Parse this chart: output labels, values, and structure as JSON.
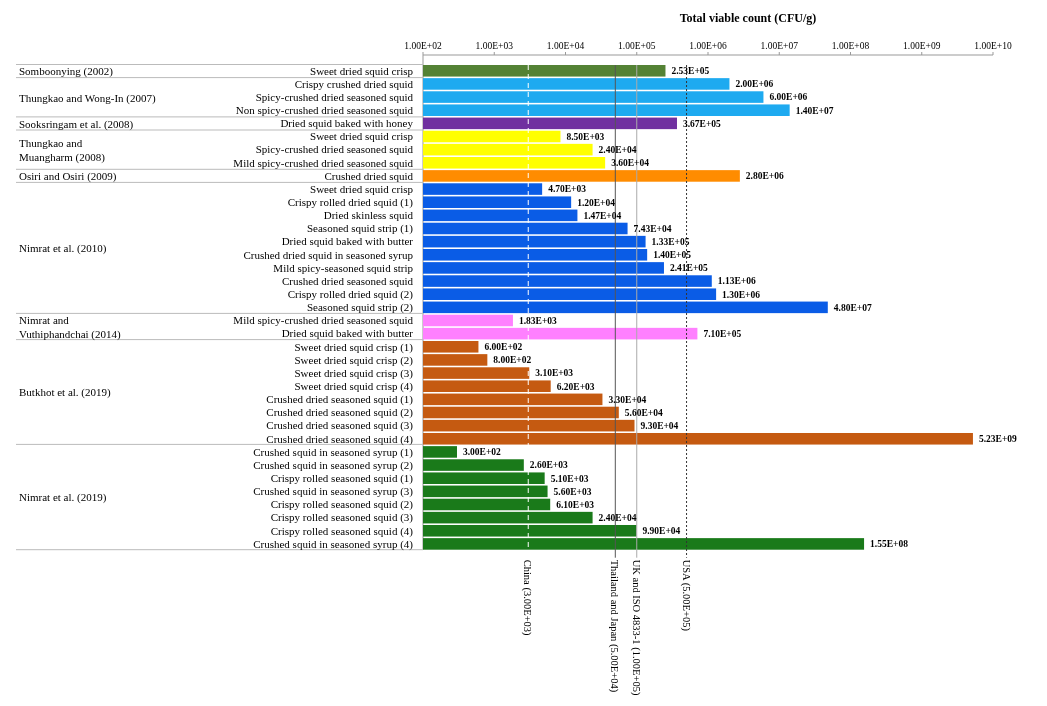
{
  "chart_data": {
    "type": "bar",
    "orientation": "horizontal",
    "log": "x",
    "xlabel": "Total viable count (CFU/g)",
    "categories": [
      "Sweet dried squid crisp",
      "Crispy crushed dried squid",
      "Spicy-crushed dried seasoned squid",
      "Non spicy-crushed dried seasoned squid",
      "Dried squid baked with honey",
      "Sweet dried squid crisp",
      "Spicy-crushed dried seasoned squid",
      "Mild spicy-crushed dried seasoned squid",
      "Crushed dried squid",
      "Sweet dried squid crisp",
      "Crispy rolled dried squid (1)",
      "Dried skinless squid",
      "Seasoned squid strip (1)",
      "Dried squid baked with butter",
      "Crushed dried squid in seasoned syrup",
      "Mild spicy-seasoned squid strip",
      "Crushed dried seasoned squid",
      "Crispy rolled dried squid (2)",
      "Seasoned squid strip (2)",
      "Mild spicy-crushed dried seasoned squid",
      "Dried squid baked with butter",
      "Sweet dried squid crisp (1)",
      "Sweet dried squid crisp (2)",
      "Sweet dried squid crisp (3)",
      "Sweet dried squid crisp (4)",
      "Crushed dried seasoned squid (1)",
      "Crushed dried seasoned squid (2)",
      "Crushed dried seasoned squid (3)",
      "Crushed dried seasoned squid (4)",
      "Crushed squid in seasoned syrup (1)",
      "Crushed squid in seasoned syrup (2)",
      "Crispy rolled seasoned squid (1)",
      "Crushed squid in seasoned syrup (3)",
      "Crispy rolled seasoned squid (2)",
      "Crispy rolled seasoned squid (3)",
      "Crispy rolled seasoned squid (4)",
      "Crushed squid in seasoned syrup (4)"
    ],
    "values": [
      253000,
      2000000,
      6000000,
      14000000,
      367000,
      8500,
      24000,
      36000,
      2800000,
      4700,
      12000,
      14700,
      74300,
      133000,
      140000,
      241000,
      1130000,
      1300000,
      48000000,
      1830,
      710000,
      600,
      800,
      3100,
      6200,
      33000,
      56000,
      93000,
      5230000000,
      300,
      2600,
      5100,
      5600,
      6100,
      24000,
      99000,
      155000000
    ],
    "value_labels": [
      "2.53E+05",
      "2.00E+06",
      "6.00E+06",
      "1.40E+07",
      "3.67E+05",
      "8.50E+03",
      "2.40E+04",
      "3.60E+04",
      "2.80E+06",
      "4.70E+03",
      "1.20E+04",
      "1.47E+04",
      "7.43E+04",
      "1.33E+05",
      "1.40E+05",
      "2.41E+05",
      "1.13E+06",
      "1.30E+06",
      "4.80E+07",
      "1.83E+03",
      "7.10E+05",
      "6.00E+02",
      "8.00E+02",
      "3.10E+03",
      "6.20E+03",
      "3.30E+04",
      "5.60E+04",
      "9.30E+04",
      "5.23E+09",
      "3.00E+02",
      "2.60E+03",
      "5.10E+03",
      "5.60E+03",
      "6.10E+03",
      "2.40E+04",
      "9.90E+04",
      "1.55E+08"
    ],
    "colors": [
      "#548235",
      "#1eaaf0",
      "#1eaaf0",
      "#1eaaf0",
      "#7030a0",
      "#ffff00",
      "#ffff00",
      "#ffff00",
      "#ff8c00",
      "#0a5ce6",
      "#0a5ce6",
      "#0a5ce6",
      "#0a5ce6",
      "#0a5ce6",
      "#0a5ce6",
      "#0a5ce6",
      "#0a5ce6",
      "#0a5ce6",
      "#0a5ce6",
      "#ff80ff",
      "#ff80ff",
      "#c55a11",
      "#c55a11",
      "#c55a11",
      "#c55a11",
      "#c55a11",
      "#c55a11",
      "#c55a11",
      "#c55a11",
      "#1a7a1a",
      "#1a7a1a",
      "#1a7a1a",
      "#1a7a1a",
      "#1a7a1a",
      "#1a7a1a",
      "#1a7a1a",
      "#1a7a1a"
    ],
    "xlim": [
      100,
      10000000000
    ],
    "xticks": [
      {
        "value": 100,
        "label": "1.00E+02"
      },
      {
        "value": 1000,
        "label": "1.00E+03"
      },
      {
        "value": 10000,
        "label": "1.00E+04"
      },
      {
        "value": 100000,
        "label": "1.00E+05"
      },
      {
        "value": 1000000,
        "label": "1.00E+06"
      },
      {
        "value": 10000000,
        "label": "1.00E+07"
      },
      {
        "value": 100000000,
        "label": "1.00E+08"
      },
      {
        "value": 1000000000,
        "label": "1.00E+09"
      },
      {
        "value": 10000000000,
        "label": "1.00E+10"
      }
    ],
    "ref_lines": [
      {
        "axis": "x",
        "value": 3000,
        "label": "China (3.00E+03)",
        "color": "#ffffff",
        "line_style": "dashed"
      },
      {
        "axis": "x",
        "value": 50000,
        "label": "Thailand and Japan (5.00E+04)",
        "color": "#555555",
        "line_style": "solid"
      },
      {
        "axis": "x",
        "value": 100000,
        "label": "UK and ISO 4833-1 (1.00E+05)",
        "color": "#aaaaaa",
        "line_style": "solid"
      },
      {
        "axis": "x",
        "value": 500000,
        "label": "USA (5.00E+05)",
        "color": "#333333",
        "line_style": "dotted"
      }
    ],
    "annotations": [
      "Somboonying (2002)",
      "Thungkao and Wong-In (2007)",
      "Sooksringam et al. (2008)",
      "Thungkao and\nMuangharm (2008)",
      "Osiri and Osiri (2009)",
      "Nimrat et al. (2010)",
      "Nimrat and\nVuthiphandchai (2014)",
      "Butkhot et al. (2019)",
      "Nimrat et al. (2019)"
    ],
    "grid": false
  }
}
